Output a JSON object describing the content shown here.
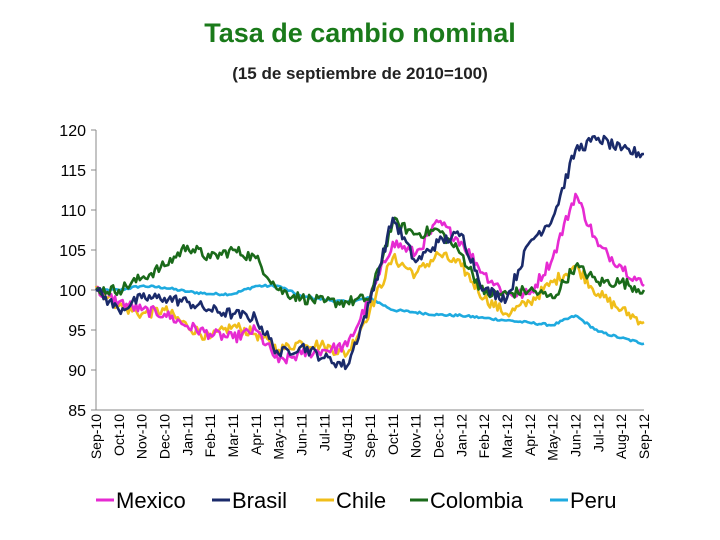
{
  "chart_data": {
    "type": "line",
    "title": "Tasa de cambio nominal",
    "subtitle": "(15 de septiembre de 2010=100)",
    "ylim": [
      85,
      120
    ],
    "yticks": [
      85,
      90,
      95,
      100,
      105,
      110,
      115,
      120
    ],
    "categories": [
      "Sep-10",
      "Oct-10",
      "Nov-10",
      "Dec-10",
      "Jan-11",
      "Feb-11",
      "Mar-11",
      "Apr-11",
      "May-11",
      "Jun-11",
      "Jul-11",
      "Aug-11",
      "Sep-11",
      "Oct-11",
      "Nov-11",
      "Dec-11",
      "Jan-12",
      "Feb-12",
      "Mar-12",
      "Apr-12",
      "May-12",
      "Jun-12",
      "Jul-12",
      "Aug-12",
      "Sep-12"
    ],
    "grid": false,
    "legend_position": "bottom",
    "series": [
      {
        "name": "Mexico",
        "color": "#e62ad2",
        "values": [
          100,
          98.5,
          97.5,
          97,
          95.5,
          94.5,
          94,
          95,
          91,
          92,
          92.5,
          93,
          99,
          106,
          104.5,
          108.5,
          106,
          102,
          99.5,
          99.5,
          104,
          112,
          105.5,
          103,
          100.5
        ]
      },
      {
        "name": "Brasil",
        "color": "#1a2a6a",
        "values": [
          100,
          97.5,
          99,
          99,
          98.5,
          97.5,
          97,
          96.5,
          92,
          93,
          91.5,
          90.5,
          98.5,
          109,
          103.5,
          106,
          107,
          100,
          99,
          106,
          109,
          117.5,
          119,
          117.5,
          117
        ]
      },
      {
        "name": "Chile",
        "color": "#f0be1a",
        "values": [
          100.5,
          98,
          97,
          97.5,
          95.5,
          94,
          95.5,
          94.5,
          92.5,
          93.5,
          93,
          92,
          97.5,
          104,
          102,
          104.5,
          103,
          99,
          97,
          98.5,
          101,
          103,
          99.5,
          97.5,
          96
        ]
      },
      {
        "name": "Colombia",
        "color": "#1a6a1a",
        "values": [
          100,
          100,
          101.5,
          103,
          105.5,
          104,
          105,
          104,
          100,
          99,
          98.5,
          98.5,
          99,
          108.5,
          107,
          107.5,
          104.5,
          99.5,
          99.5,
          100,
          99,
          103,
          101,
          101,
          100
        ]
      },
      {
        "name": "Peru",
        "color": "#1eaadf",
        "values": [
          100,
          100,
          100.5,
          100.3,
          99.8,
          99.5,
          99.5,
          100.5,
          100.5,
          99.2,
          98.8,
          98.5,
          99,
          97.5,
          97.2,
          96.9,
          96.8,
          96.5,
          96.2,
          95.9,
          95.6,
          96.8,
          94.8,
          94,
          93.3
        ]
      }
    ]
  }
}
